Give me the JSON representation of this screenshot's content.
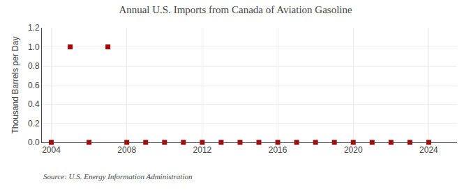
{
  "chart_data": {
    "type": "scatter",
    "title": "Annual U.S. Imports from Canada of Aviation Gasoline",
    "ylabel": "Thousand Barrels per Day",
    "annotations": [
      "Source: U.S. Energy Information Administration"
    ],
    "x": [
      2004,
      2005,
      2006,
      2007,
      2008,
      2009,
      2010,
      2011,
      2012,
      2013,
      2014,
      2015,
      2016,
      2017,
      2018,
      2019,
      2020,
      2021,
      2022,
      2023,
      2024
    ],
    "values": [
      0.0,
      1.0,
      0.0,
      1.0,
      0.0,
      0.0,
      0.0,
      0.0,
      0.0,
      0.0,
      0.0,
      0.0,
      0.0,
      0.0,
      0.0,
      0.0,
      0.0,
      0.0,
      0.0,
      0.0,
      0.0
    ],
    "color": "#aa0000",
    "marker": "square",
    "xlim": [
      2003.5,
      2025.5
    ],
    "xticks": [
      2004,
      2008,
      2012,
      2016,
      2020,
      2024
    ],
    "ylim": [
      0.0,
      1.2
    ],
    "yticks": [
      {
        "value": 0.0,
        "label": "0.0"
      },
      0.2,
      0.4,
      0.6,
      0.8,
      {
        "value": 1.0,
        "label": "1.0"
      },
      1.2
    ],
    "grid": true
  }
}
